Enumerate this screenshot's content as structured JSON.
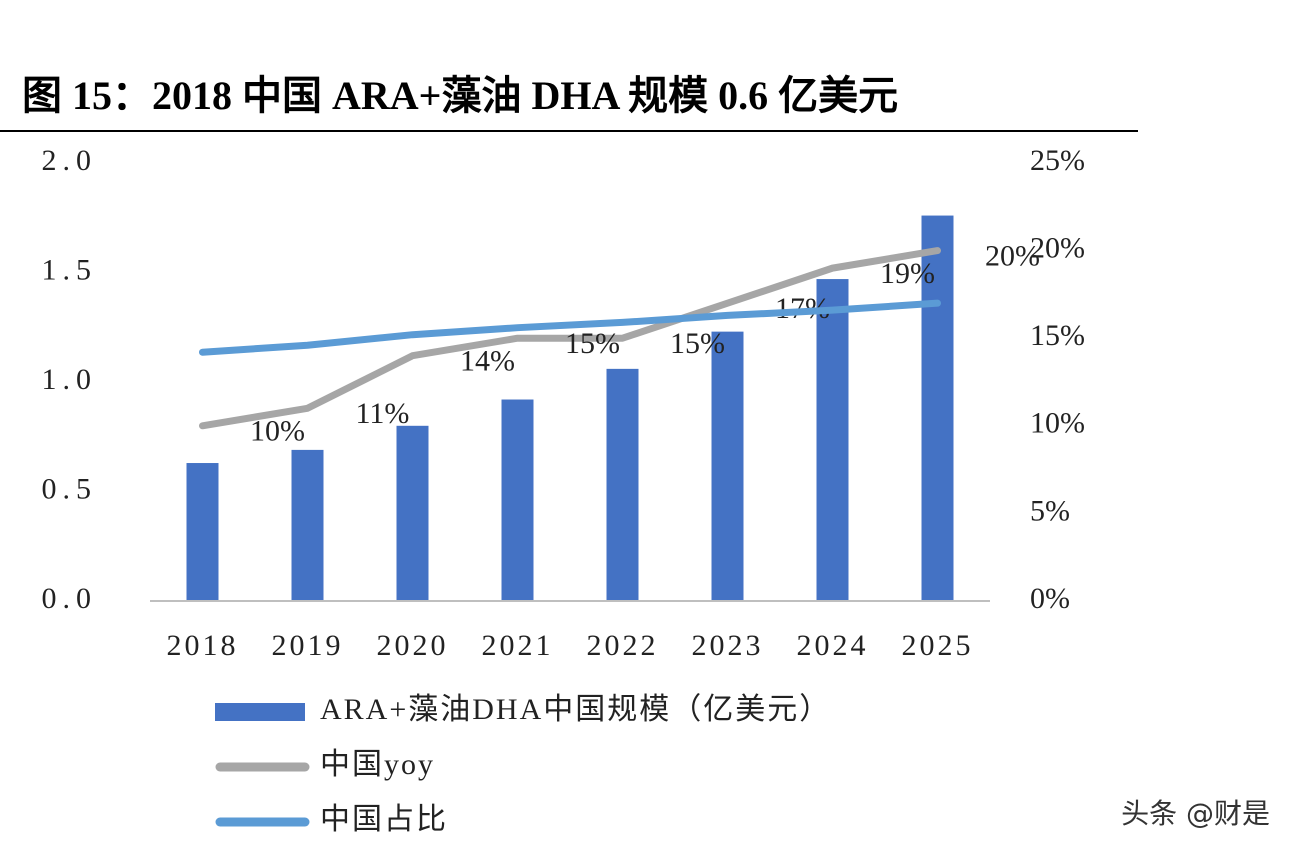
{
  "chart_data": {
    "type": "bar",
    "title": "图 15：2018 中国 ARA+藻油 DHA 规模 0.6 亿美元",
    "categories": [
      "2018",
      "2019",
      "2020",
      "2021",
      "2022",
      "2023",
      "2024",
      "2025"
    ],
    "series": [
      {
        "name": "ARA+藻油DHA中国规模（亿美元）",
        "color": "#4472c4",
        "type": "bar",
        "values": [
          0.63,
          0.69,
          0.8,
          0.92,
          1.06,
          1.23,
          1.47,
          1.76
        ]
      },
      {
        "name": "中国yoy",
        "color": "#a6a6a6",
        "type": "line",
        "axis": "y2",
        "values": [
          10,
          11,
          14,
          15,
          15,
          17,
          19,
          20
        ],
        "value_labels": [
          "10%",
          "11%",
          "14%",
          "15%",
          "15%",
          "17%",
          "19%",
          "20%"
        ]
      },
      {
        "name": "中国占比",
        "color": "#5b9bd5",
        "type": "line",
        "axis": "y2",
        "values": [
          14.2,
          14.6,
          15.2,
          15.6,
          15.9,
          16.3,
          16.6,
          17.0
        ]
      }
    ],
    "ylim": [
      0,
      2
    ],
    "yticks": [
      {
        "value": 0,
        "label": "0.0"
      },
      0.5,
      {
        "value": 1,
        "label": "1.0"
      },
      1.5,
      {
        "value": 2,
        "label": "2.0"
      }
    ],
    "y2lim": [
      0,
      25
    ],
    "y2ticks": [
      {
        "value": 0,
        "label": "0%"
      },
      {
        "value": 5,
        "label": "5%"
      },
      {
        "value": 10,
        "label": "10%"
      },
      {
        "value": 15,
        "label": "15%"
      },
      {
        "value": 20,
        "label": "20%"
      },
      {
        "value": 25,
        "label": "25%"
      }
    ],
    "grid": false,
    "legend": "bottom",
    "watermark": "头条 @财是"
  }
}
